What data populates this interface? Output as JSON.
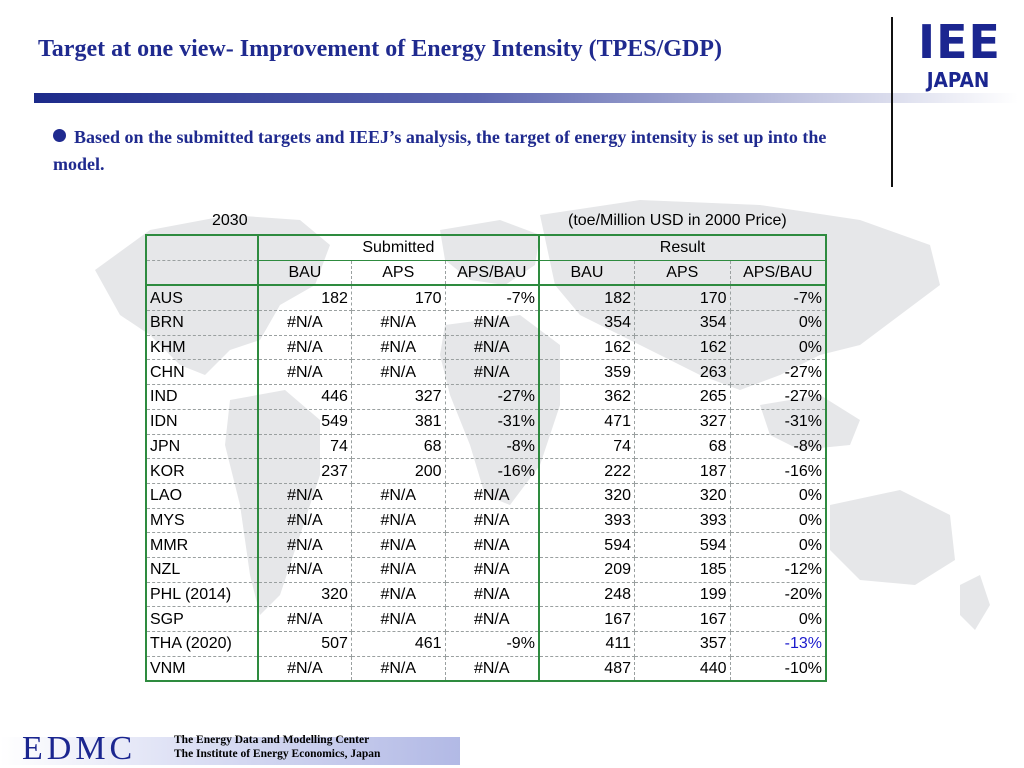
{
  "title": "Target at one view- Improvement of Energy Intensity (TPES/GDP)",
  "logo": {
    "top": "IEE",
    "bottom": "JAPAN"
  },
  "bullet": "Based on  the submitted targets and IEEJ’s analysis, the target of energy intensity is set up into the model.",
  "table": {
    "year": "2030",
    "unit": "(toe/Million USD in 2000 Price)",
    "group_headers": [
      "Submitted",
      "Result"
    ],
    "column_headers": [
      "BAU",
      "APS",
      "APS/BAU",
      "BAU",
      "APS",
      "APS/BAU"
    ],
    "rows": [
      [
        "AUS",
        "182",
        "170",
        "-7%",
        "182",
        "170",
        "-7%"
      ],
      [
        "BRN",
        "#N/A",
        "#N/A",
        "#N/A",
        "354",
        "354",
        "0%"
      ],
      [
        "KHM",
        "#N/A",
        "#N/A",
        "#N/A",
        "162",
        "162",
        "0%"
      ],
      [
        "CHN",
        "#N/A",
        "#N/A",
        "#N/A",
        "359",
        "263",
        "-27%"
      ],
      [
        "IND",
        "446",
        "327",
        "-27%",
        "362",
        "265",
        "-27%"
      ],
      [
        "IDN",
        "549",
        "381",
        "-31%",
        "471",
        "327",
        "-31%"
      ],
      [
        "JPN",
        "74",
        "68",
        "-8%",
        "74",
        "68",
        "-8%"
      ],
      [
        "KOR",
        "237",
        "200",
        "-16%",
        "222",
        "187",
        "-16%"
      ],
      [
        "LAO",
        "#N/A",
        "#N/A",
        "#N/A",
        "320",
        "320",
        "0%"
      ],
      [
        "MYS",
        "#N/A",
        "#N/A",
        "#N/A",
        "393",
        "393",
        "0%"
      ],
      [
        "MMR",
        "#N/A",
        "#N/A",
        "#N/A",
        "594",
        "594",
        "0%"
      ],
      [
        "NZL",
        "#N/A",
        "#N/A",
        "#N/A",
        "209",
        "185",
        "-12%"
      ],
      [
        "PHL (2014)",
        "320",
        "#N/A",
        "#N/A",
        "248",
        "199",
        "-20%"
      ],
      [
        "SGP",
        "#N/A",
        "#N/A",
        "#N/A",
        "167",
        "167",
        "0%"
      ],
      [
        "THA (2020)",
        "507",
        "461",
        "-9%",
        "411",
        "357",
        "-13%"
      ],
      [
        "VNM",
        "#N/A",
        "#N/A",
        "#N/A",
        "487",
        "440",
        "-10%"
      ]
    ]
  },
  "footer": {
    "brand": "EDMC",
    "line1": "The Energy Data and Modelling Center",
    "line2": "The Institute of Energy Economics, Japan"
  },
  "colors": {
    "title": "#1f2a8f",
    "table_border": "#2e8b3f",
    "highlight_value": "#1a1acc"
  }
}
